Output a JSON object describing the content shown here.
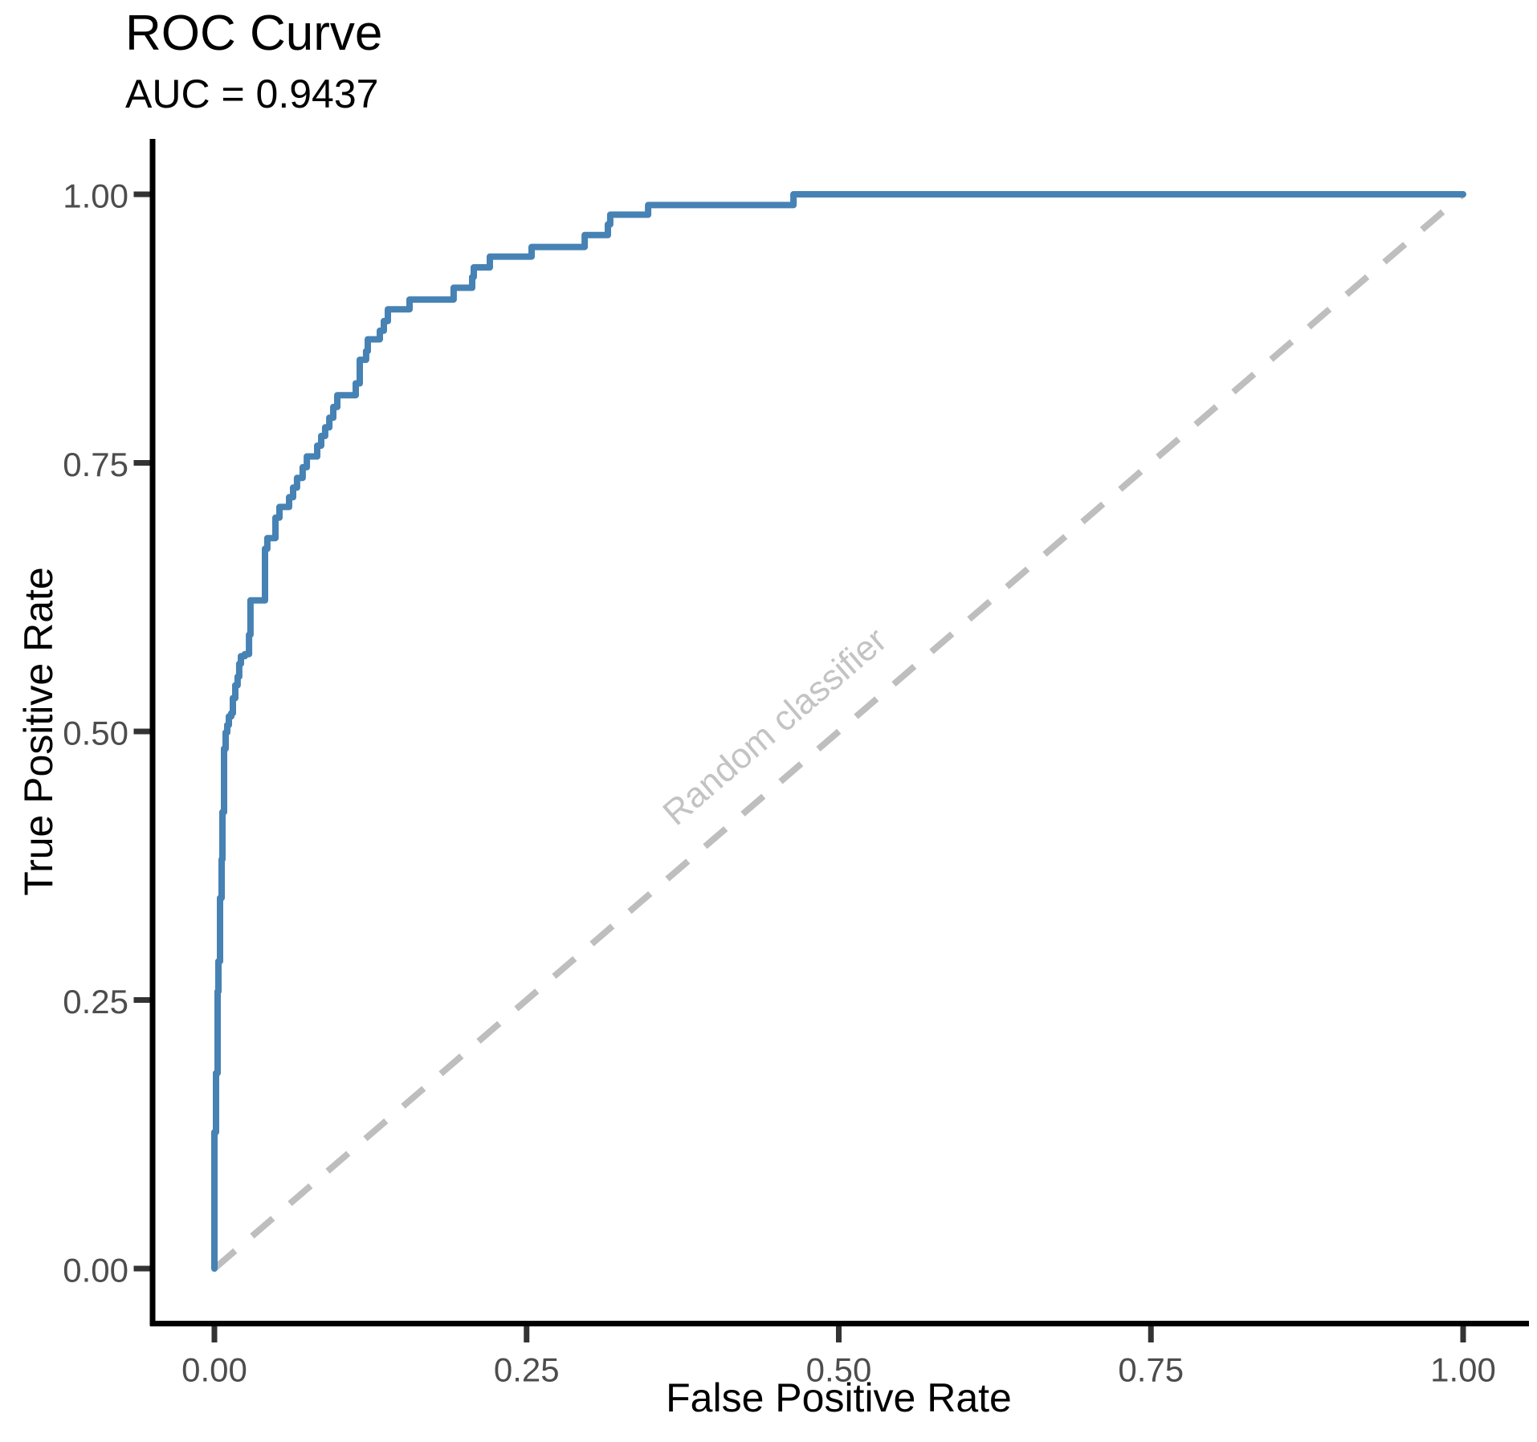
{
  "title": "ROC Curve",
  "subtitle": "AUC = 0.9437",
  "colors": {
    "curve": "#4682B4",
    "diagonal": "#BEBEBE",
    "annotation_text": "#C3C3C3",
    "tick_text": "#4D4D4D",
    "axis_line": "#000000",
    "tick_mark": "#333333",
    "axis_title": "#000000"
  },
  "chart_data": {
    "type": "line",
    "title": "ROC Curve",
    "subtitle": "AUC = 0.9437",
    "auc": 0.9437,
    "xlabel": "False Positive Rate",
    "ylabel": "True Positive Rate",
    "xlim": [
      0,
      1
    ],
    "ylim": [
      0,
      1
    ],
    "grid": false,
    "x_ticks": [
      {
        "value": 0.0,
        "label": "0.00"
      },
      {
        "value": 0.25,
        "label": "0.25"
      },
      {
        "value": 0.5,
        "label": "0.50"
      },
      {
        "value": 0.75,
        "label": "0.75"
      },
      {
        "value": 1.0,
        "label": "1.00"
      }
    ],
    "y_ticks": [
      {
        "value": 0.0,
        "label": "0.00"
      },
      {
        "value": 0.25,
        "label": "0.25"
      },
      {
        "value": 0.5,
        "label": "0.50"
      },
      {
        "value": 0.75,
        "label": "0.75"
      },
      {
        "value": 1.0,
        "label": "1.00"
      }
    ],
    "annotation": {
      "text": "Random classifier"
    },
    "series": [
      {
        "name": "ROC curve",
        "style": "solid",
        "points": [
          [
            0.0,
            0.0
          ],
          [
            0.0,
            0.127
          ],
          [
            0.0013,
            0.127
          ],
          [
            0.0013,
            0.182
          ],
          [
            0.0026,
            0.182
          ],
          [
            0.0026,
            0.258
          ],
          [
            0.0032,
            0.258
          ],
          [
            0.0032,
            0.286
          ],
          [
            0.0045,
            0.286
          ],
          [
            0.0045,
            0.345
          ],
          [
            0.0058,
            0.345
          ],
          [
            0.0058,
            0.381
          ],
          [
            0.0064,
            0.381
          ],
          [
            0.0064,
            0.425
          ],
          [
            0.0077,
            0.425
          ],
          [
            0.0077,
            0.484
          ],
          [
            0.009,
            0.484
          ],
          [
            0.009,
            0.499
          ],
          [
            0.0103,
            0.499
          ],
          [
            0.0103,
            0.506
          ],
          [
            0.0116,
            0.506
          ],
          [
            0.0116,
            0.514
          ],
          [
            0.0135,
            0.514
          ],
          [
            0.0135,
            0.517
          ],
          [
            0.0148,
            0.517
          ],
          [
            0.0148,
            0.531
          ],
          [
            0.0167,
            0.531
          ],
          [
            0.0167,
            0.543
          ],
          [
            0.0186,
            0.543
          ],
          [
            0.0186,
            0.551
          ],
          [
            0.0199,
            0.551
          ],
          [
            0.0199,
            0.563
          ],
          [
            0.0212,
            0.563
          ],
          [
            0.0212,
            0.57
          ],
          [
            0.0244,
            0.57
          ],
          [
            0.0244,
            0.572
          ],
          [
            0.0277,
            0.572
          ],
          [
            0.0277,
            0.59
          ],
          [
            0.0289,
            0.59
          ],
          [
            0.0289,
            0.622
          ],
          [
            0.0405,
            0.622
          ],
          [
            0.0405,
            0.67
          ],
          [
            0.0424,
            0.67
          ],
          [
            0.0424,
            0.68
          ],
          [
            0.0489,
            0.68
          ],
          [
            0.0489,
            0.699
          ],
          [
            0.0521,
            0.699
          ],
          [
            0.0521,
            0.709
          ],
          [
            0.0598,
            0.709
          ],
          [
            0.0598,
            0.718
          ],
          [
            0.063,
            0.718
          ],
          [
            0.063,
            0.727
          ],
          [
            0.0662,
            0.727
          ],
          [
            0.0662,
            0.736
          ],
          [
            0.0707,
            0.736
          ],
          [
            0.0707,
            0.746
          ],
          [
            0.074,
            0.746
          ],
          [
            0.074,
            0.756
          ],
          [
            0.0823,
            0.756
          ],
          [
            0.0823,
            0.766
          ],
          [
            0.0855,
            0.766
          ],
          [
            0.0855,
            0.775
          ],
          [
            0.0887,
            0.775
          ],
          [
            0.0887,
            0.783
          ],
          [
            0.092,
            0.783
          ],
          [
            0.092,
            0.792
          ],
          [
            0.0952,
            0.792
          ],
          [
            0.0952,
            0.802
          ],
          [
            0.0984,
            0.802
          ],
          [
            0.0984,
            0.813
          ],
          [
            0.1132,
            0.813
          ],
          [
            0.1132,
            0.824
          ],
          [
            0.1164,
            0.824
          ],
          [
            0.1164,
            0.846
          ],
          [
            0.1215,
            0.846
          ],
          [
            0.1215,
            0.854
          ],
          [
            0.1228,
            0.854
          ],
          [
            0.1228,
            0.865
          ],
          [
            0.1325,
            0.865
          ],
          [
            0.1325,
            0.873
          ],
          [
            0.1357,
            0.873
          ],
          [
            0.1357,
            0.882
          ],
          [
            0.1389,
            0.882
          ],
          [
            0.1389,
            0.893
          ],
          [
            0.1563,
            0.893
          ],
          [
            0.1563,
            0.902
          ],
          [
            0.1916,
            0.902
          ],
          [
            0.1916,
            0.913
          ],
          [
            0.2064,
            0.913
          ],
          [
            0.2064,
            0.923
          ],
          [
            0.2077,
            0.923
          ],
          [
            0.2077,
            0.932
          ],
          [
            0.2206,
            0.932
          ],
          [
            0.2206,
            0.942
          ],
          [
            0.254,
            0.942
          ],
          [
            0.254,
            0.951
          ],
          [
            0.2965,
            0.951
          ],
          [
            0.2965,
            0.962
          ],
          [
            0.3151,
            0.962
          ],
          [
            0.3151,
            0.972
          ],
          [
            0.317,
            0.972
          ],
          [
            0.317,
            0.981
          ],
          [
            0.3473,
            0.981
          ],
          [
            0.3473,
            0.99
          ],
          [
            0.4637,
            0.99
          ],
          [
            0.4637,
            1.0
          ],
          [
            1.0,
            1.0
          ]
        ]
      },
      {
        "name": "Random classifier",
        "style": "dashed",
        "points": [
          [
            0,
            0
          ],
          [
            1,
            1
          ]
        ]
      }
    ]
  }
}
